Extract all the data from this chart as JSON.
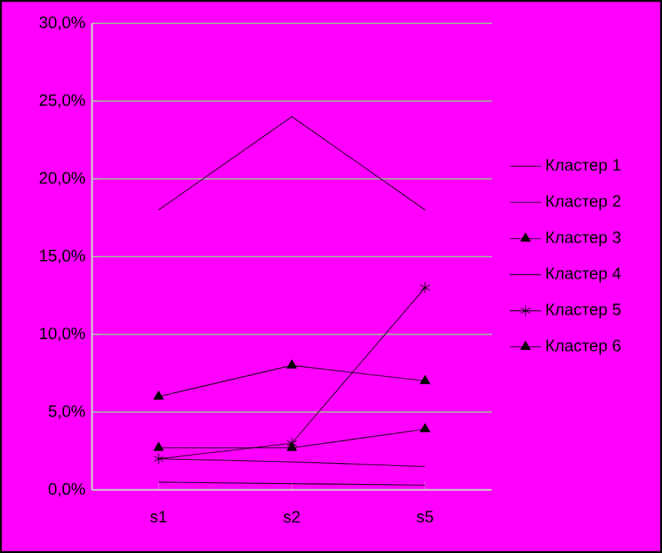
{
  "chart_data": {
    "type": "line",
    "categories": [
      "s1",
      "s2",
      "s5"
    ],
    "series": [
      {
        "name": "Кластер 1",
        "color": "#000000",
        "marker": "none",
        "values": [
          18,
          24,
          18
        ]
      },
      {
        "name": "Кластер 2",
        "color": "#000000",
        "marker": "none",
        "values": [
          2.0,
          1.8,
          1.5
        ]
      },
      {
        "name": "Кластер 3",
        "color": "#000000",
        "marker": "triangle",
        "values": [
          2.7,
          2.7,
          3.9
        ]
      },
      {
        "name": "Кластер 4",
        "color": "#000000",
        "marker": "none",
        "values": [
          0.5,
          0.4,
          0.3
        ]
      },
      {
        "name": "Кластер 5",
        "color": "#000000",
        "marker": "cross",
        "values": [
          2.0,
          3.0,
          13.0
        ]
      },
      {
        "name": "Кластер 6",
        "color": "#000000",
        "marker": "triangle",
        "values": [
          6,
          8,
          7
        ]
      }
    ],
    "ylim": [
      0,
      30
    ],
    "yticks": [
      {
        "value": 0,
        "label": "0,0%"
      },
      {
        "value": 5,
        "label": "5,0%"
      },
      {
        "value": 10,
        "label": "10,0%"
      },
      {
        "value": 15,
        "label": "15,0%"
      },
      {
        "value": 20,
        "label": "20,0%"
      },
      {
        "value": 25,
        "label": "25,0%"
      },
      {
        "value": 30,
        "label": "30,0%"
      }
    ],
    "grid": "y",
    "legend": "right",
    "line_style": "solid"
  }
}
